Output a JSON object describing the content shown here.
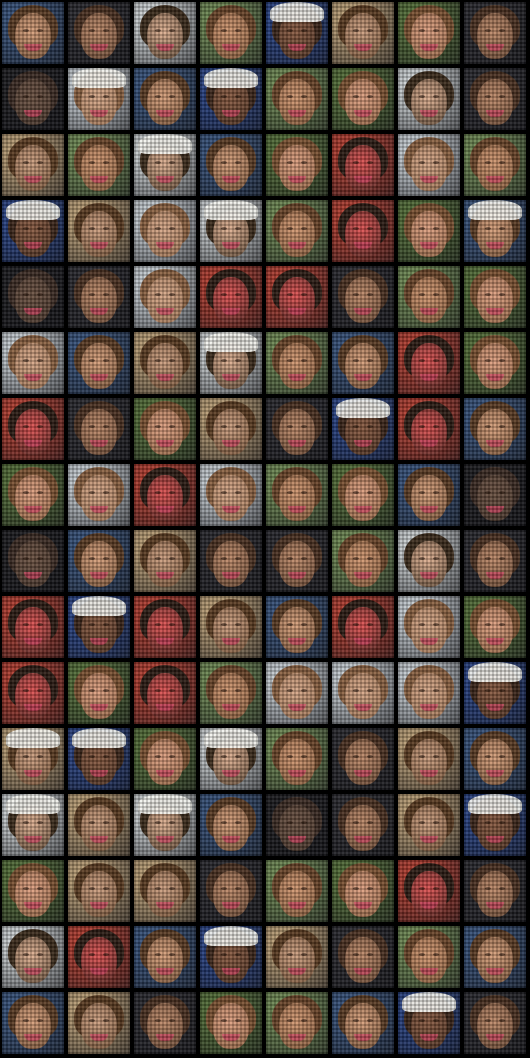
{
  "grid": {
    "rows": 16,
    "cols": 8,
    "background_color": "#000000",
    "tile_palettes": [
      {
        "bg": "#3a5a8a",
        "hair": "#5a3a22",
        "skin": "#d9a07a"
      },
      {
        "bg": "#2a2a30",
        "hair": "#4a3020",
        "skin": "#c08a68"
      },
      {
        "bg": "#e8eef0",
        "hair": "#3a2a1a",
        "skin": "#e2b292"
      },
      {
        "bg": "#7a9a5a",
        "hair": "#6a4428",
        "skin": "#d49870"
      },
      {
        "bg": "#2a4a9a",
        "hair": "#3a2418",
        "skin": "#8a5a40"
      },
      {
        "bg": "#c84030",
        "hair": "#2a1a12",
        "skin": "#e25050"
      },
      {
        "bg": "#5a7a3a",
        "hair": "#7a5030",
        "skin": "#e0a080"
      },
      {
        "bg": "#d0b080",
        "hair": "#5a3a20",
        "skin": "#cfa080"
      },
      {
        "bg": "#1a1a1e",
        "hair": "#3a2a22",
        "skin": "#6a5040"
      },
      {
        "bg": "#e0e8ee",
        "hair": "#8a6040",
        "skin": "#d8a888"
      }
    ],
    "tiles": [
      {
        "p": 0,
        "cap": false
      },
      {
        "p": 1,
        "cap": false
      },
      {
        "p": 2,
        "cap": false
      },
      {
        "p": 3,
        "cap": false
      },
      {
        "p": 4,
        "cap": true
      },
      {
        "p": 7,
        "cap": false
      },
      {
        "p": 6,
        "cap": false
      },
      {
        "p": 1,
        "cap": false
      },
      {
        "p": 8,
        "cap": false
      },
      {
        "p": 9,
        "cap": true
      },
      {
        "p": 0,
        "cap": false
      },
      {
        "p": 4,
        "cap": true
      },
      {
        "p": 3,
        "cap": false
      },
      {
        "p": 6,
        "cap": false
      },
      {
        "p": 2,
        "cap": false
      },
      {
        "p": 1,
        "cap": false
      },
      {
        "p": 7,
        "cap": false
      },
      {
        "p": 3,
        "cap": false
      },
      {
        "p": 2,
        "cap": true
      },
      {
        "p": 0,
        "cap": false
      },
      {
        "p": 6,
        "cap": false
      },
      {
        "p": 5,
        "cap": false
      },
      {
        "p": 9,
        "cap": false
      },
      {
        "p": 3,
        "cap": false
      },
      {
        "p": 4,
        "cap": true
      },
      {
        "p": 7,
        "cap": false
      },
      {
        "p": 9,
        "cap": false
      },
      {
        "p": 2,
        "cap": true
      },
      {
        "p": 3,
        "cap": false
      },
      {
        "p": 5,
        "cap": false
      },
      {
        "p": 6,
        "cap": false
      },
      {
        "p": 0,
        "cap": true
      },
      {
        "p": 8,
        "cap": false
      },
      {
        "p": 1,
        "cap": false
      },
      {
        "p": 9,
        "cap": false
      },
      {
        "p": 5,
        "cap": false
      },
      {
        "p": 5,
        "cap": false
      },
      {
        "p": 1,
        "cap": false
      },
      {
        "p": 3,
        "cap": false
      },
      {
        "p": 6,
        "cap": false
      },
      {
        "p": 9,
        "cap": false
      },
      {
        "p": 0,
        "cap": false
      },
      {
        "p": 7,
        "cap": false
      },
      {
        "p": 2,
        "cap": true
      },
      {
        "p": 3,
        "cap": false
      },
      {
        "p": 0,
        "cap": false
      },
      {
        "p": 5,
        "cap": false
      },
      {
        "p": 6,
        "cap": false
      },
      {
        "p": 5,
        "cap": false
      },
      {
        "p": 1,
        "cap": false
      },
      {
        "p": 6,
        "cap": false
      },
      {
        "p": 7,
        "cap": false
      },
      {
        "p": 1,
        "cap": false
      },
      {
        "p": 4,
        "cap": true
      },
      {
        "p": 5,
        "cap": false
      },
      {
        "p": 0,
        "cap": false
      },
      {
        "p": 6,
        "cap": false
      },
      {
        "p": 9,
        "cap": false
      },
      {
        "p": 5,
        "cap": false
      },
      {
        "p": 9,
        "cap": false
      },
      {
        "p": 3,
        "cap": false
      },
      {
        "p": 6,
        "cap": false
      },
      {
        "p": 0,
        "cap": false
      },
      {
        "p": 8,
        "cap": false
      },
      {
        "p": 8,
        "cap": false
      },
      {
        "p": 0,
        "cap": false
      },
      {
        "p": 7,
        "cap": false
      },
      {
        "p": 1,
        "cap": false
      },
      {
        "p": 1,
        "cap": false
      },
      {
        "p": 3,
        "cap": false
      },
      {
        "p": 2,
        "cap": false
      },
      {
        "p": 1,
        "cap": false
      },
      {
        "p": 5,
        "cap": false
      },
      {
        "p": 4,
        "cap": true
      },
      {
        "p": 5,
        "cap": false
      },
      {
        "p": 7,
        "cap": false
      },
      {
        "p": 0,
        "cap": false
      },
      {
        "p": 5,
        "cap": false
      },
      {
        "p": 9,
        "cap": false
      },
      {
        "p": 6,
        "cap": false
      },
      {
        "p": 5,
        "cap": false
      },
      {
        "p": 6,
        "cap": false
      },
      {
        "p": 5,
        "cap": false
      },
      {
        "p": 3,
        "cap": false
      },
      {
        "p": 9,
        "cap": false
      },
      {
        "p": 9,
        "cap": false
      },
      {
        "p": 9,
        "cap": false
      },
      {
        "p": 4,
        "cap": true
      },
      {
        "p": 7,
        "cap": true
      },
      {
        "p": 4,
        "cap": true
      },
      {
        "p": 6,
        "cap": false
      },
      {
        "p": 2,
        "cap": true
      },
      {
        "p": 3,
        "cap": false
      },
      {
        "p": 1,
        "cap": false
      },
      {
        "p": 7,
        "cap": false
      },
      {
        "p": 0,
        "cap": false
      },
      {
        "p": 2,
        "cap": true
      },
      {
        "p": 7,
        "cap": false
      },
      {
        "p": 2,
        "cap": true
      },
      {
        "p": 0,
        "cap": false
      },
      {
        "p": 8,
        "cap": false
      },
      {
        "p": 1,
        "cap": false
      },
      {
        "p": 7,
        "cap": false
      },
      {
        "p": 4,
        "cap": true
      },
      {
        "p": 6,
        "cap": false
      },
      {
        "p": 7,
        "cap": false
      },
      {
        "p": 7,
        "cap": false
      },
      {
        "p": 1,
        "cap": false
      },
      {
        "p": 3,
        "cap": false
      },
      {
        "p": 6,
        "cap": false
      },
      {
        "p": 5,
        "cap": false
      },
      {
        "p": 1,
        "cap": false
      },
      {
        "p": 2,
        "cap": false
      },
      {
        "p": 5,
        "cap": false
      },
      {
        "p": 0,
        "cap": false
      },
      {
        "p": 4,
        "cap": true
      },
      {
        "p": 7,
        "cap": false
      },
      {
        "p": 1,
        "cap": false
      },
      {
        "p": 3,
        "cap": false
      },
      {
        "p": 0,
        "cap": false
      },
      {
        "p": 0,
        "cap": false
      },
      {
        "p": 7,
        "cap": false
      },
      {
        "p": 1,
        "cap": false
      },
      {
        "p": 6,
        "cap": false
      },
      {
        "p": 3,
        "cap": false
      },
      {
        "p": 0,
        "cap": false
      },
      {
        "p": 4,
        "cap": true
      },
      {
        "p": 1,
        "cap": false
      }
    ]
  }
}
